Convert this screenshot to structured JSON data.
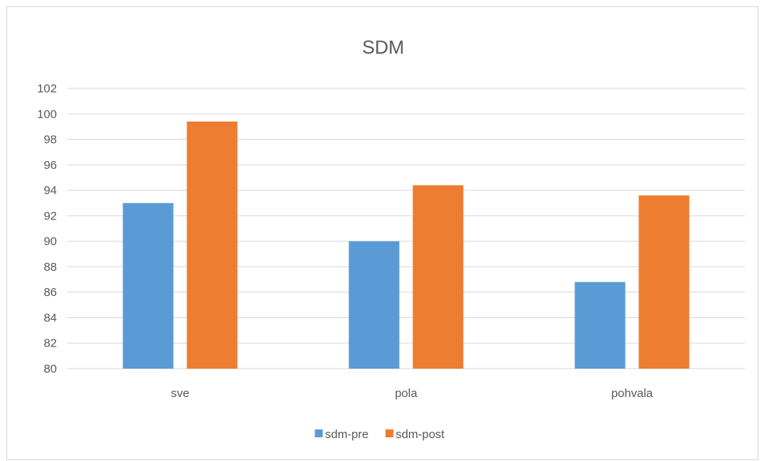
{
  "chart_data": {
    "type": "bar",
    "title": "SDM",
    "categories": [
      "sve",
      "pola",
      "pohvala"
    ],
    "series": [
      {
        "name": "sdm-pre",
        "values": [
          93.0,
          90.0,
          86.8
        ],
        "color": "#5b9bd5"
      },
      {
        "name": "sdm-post",
        "values": [
          99.4,
          94.4,
          93.6
        ],
        "color": "#ed7d31"
      }
    ],
    "ylim": [
      80,
      102
    ],
    "yticks": [
      80,
      82,
      84,
      86,
      88,
      90,
      92,
      94,
      96,
      98,
      100,
      102
    ],
    "grid": true,
    "legend_position": "bottom",
    "grid_color": "#d9d9d9",
    "text_color": "#595959"
  }
}
